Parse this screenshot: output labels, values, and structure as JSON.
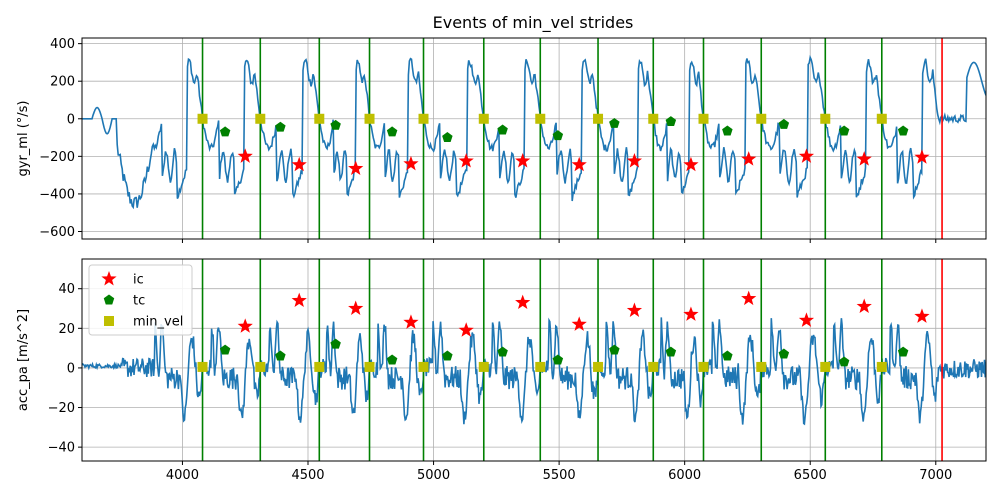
{
  "chart_data": {
    "type": "line",
    "title": "Events of min_vel strides",
    "shared_x": {
      "xlim": [
        3600,
        7200
      ],
      "ticks": [
        4000,
        4500,
        5000,
        5500,
        6000,
        6500,
        7000
      ],
      "tick_labels": [
        "4000",
        "4500",
        "5000",
        "5500",
        "6000",
        "6500",
        "7000"
      ]
    },
    "stride_boundaries_green": [
      4080,
      4310,
      4545,
      4745,
      4960,
      5200,
      5425,
      5655,
      5875,
      6075,
      6305,
      6560,
      6785
    ],
    "end_boundary_red": [
      7025
    ],
    "legend": {
      "placement": "upper-left",
      "entries": [
        {
          "label": "ic",
          "color": "#ff0000",
          "marker": "star"
        },
        {
          "label": "tc",
          "color": "#008000",
          "marker": "pentagon"
        },
        {
          "label": "min_vel",
          "color": "#bfbf00",
          "marker": "square"
        }
      ]
    },
    "panels": [
      {
        "ylabel": "gyr_ml (°/s)",
        "ylim": [
          -640,
          430
        ],
        "yticks": [
          -600,
          -400,
          -200,
          0,
          200,
          400
        ],
        "ytick_labels": [
          "−600",
          "−400",
          "−200",
          "0",
          "200",
          "400"
        ],
        "grid": true,
        "series": [
          {
            "name": "ic",
            "x": [
              4250,
              4465,
              4690,
              4910,
              5130,
              5355,
              5580,
              5800,
              6025,
              6255,
              6485,
              6715,
              6945
            ],
            "y": [
              -200,
              -245,
              -265,
              -240,
              -225,
              -225,
              -245,
              -225,
              -245,
              -215,
              -200,
              -215,
              -205
            ]
          },
          {
            "name": "tc",
            "x": [
              4170,
              4390,
              4610,
              4835,
              5055,
              5275,
              5495,
              5720,
              5945,
              6170,
              6395,
              6635,
              6870
            ],
            "y": [
              -70,
              -45,
              -35,
              -70,
              -100,
              -60,
              -90,
              -25,
              -15,
              -65,
              -30,
              -65,
              -65
            ]
          },
          {
            "name": "min_vel",
            "x": [
              4080,
              4310,
              4545,
              4745,
              4960,
              5200,
              5425,
              5655,
              5875,
              6075,
              6305,
              6560,
              6785
            ],
            "y": [
              0,
              0,
              0,
              0,
              0,
              0,
              0,
              0,
              0,
              0,
              0,
              0,
              0
            ]
          }
        ]
      },
      {
        "ylabel": "acc_pa [m/s^2]",
        "ylim": [
          -47,
          55
        ],
        "yticks": [
          -40,
          -20,
          0,
          20,
          40
        ],
        "ytick_labels": [
          "−40",
          "−20",
          "0",
          "20",
          "40"
        ],
        "grid": true,
        "series": [
          {
            "name": "ic",
            "x": [
              4250,
              4465,
              4690,
              4910,
              5130,
              5355,
              5580,
              5800,
              6025,
              6255,
              6485,
              6715,
              6945
            ],
            "y": [
              21,
              34,
              30,
              23,
              19,
              33,
              22,
              29,
              27,
              35,
              24,
              31,
              26
            ]
          },
          {
            "name": "tc",
            "x": [
              4170,
              4390,
              4610,
              4835,
              5055,
              5275,
              5495,
              5720,
              5945,
              6170,
              6395,
              6635,
              6870
            ],
            "y": [
              9,
              6,
              12,
              4,
              6,
              8,
              4,
              9,
              8,
              6,
              7,
              3,
              8
            ]
          },
          {
            "name": "min_vel",
            "x": [
              4080,
              4310,
              4545,
              4745,
              4960,
              5200,
              5425,
              5655,
              5875,
              6075,
              6305,
              6560,
              6785
            ],
            "y": [
              0.5,
              0.5,
              0.5,
              0.5,
              0.5,
              0.5,
              0.5,
              0.5,
              0.5,
              0.5,
              0.5,
              0.5,
              0.5
            ]
          }
        ]
      }
    ]
  }
}
